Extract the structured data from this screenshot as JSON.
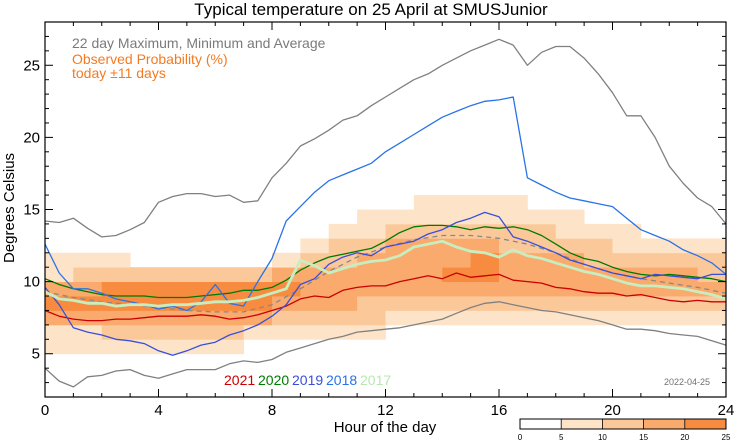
{
  "chart_data": {
    "type": "line",
    "title": "Typical temperature on 25 April at SMUSJunior",
    "xlabel": "Hour of the day",
    "ylabel": "Degrees Celsius",
    "xlim": [
      0,
      24
    ],
    "ylim": [
      2,
      28
    ],
    "x_ticks": [
      0,
      4,
      8,
      12,
      16,
      20,
      24
    ],
    "y_ticks": [
      5,
      10,
      15,
      20,
      25
    ],
    "annotations": {
      "range_label": "22 day Maximum, Minimum and Average",
      "prob_label_1": "Observed Probability (%)",
      "prob_label_2": "today ±11 days",
      "date_stamp": "2022-04-25"
    },
    "colors": {
      "envelope": "#808080",
      "average": "#888888",
      "prob_low": "#fde4c8",
      "prob_midlow": "#fbc89a",
      "prob_mid": "#f9aa6c",
      "prob_midhigh": "#f78c40",
      "prob_high": "#f47a20"
    },
    "colorbar": {
      "ticks": [
        "0",
        "5",
        "10",
        "15",
        "20",
        "25"
      ],
      "colors": [
        "#ffffff",
        "#fde4c8",
        "#fbc89a",
        "#f9aa6c",
        "#f78c40"
      ]
    },
    "probability_bins": {
      "x_step_hours": 1,
      "y_step_degC": 1,
      "y_bins_low": [
        4,
        5,
        6,
        7,
        8,
        9,
        10,
        11,
        12,
        13,
        14,
        15,
        16
      ],
      "levels": [
        [
          0,
          1,
          1,
          3,
          4,
          3,
          1,
          1,
          0,
          0,
          0,
          0,
          0
        ],
        [
          0,
          1,
          1,
          3,
          4,
          3,
          2,
          1,
          0,
          0,
          0,
          0,
          0
        ],
        [
          0,
          1,
          2,
          3,
          4,
          4,
          2,
          1,
          0,
          0,
          0,
          0,
          0
        ],
        [
          0,
          1,
          2,
          3,
          4,
          4,
          2,
          0,
          0,
          0,
          0,
          0,
          0
        ],
        [
          0,
          1,
          2,
          3,
          4,
          4,
          2,
          0,
          0,
          0,
          0,
          0,
          0
        ],
        [
          0,
          1,
          2,
          3,
          4,
          4,
          2,
          0,
          0,
          0,
          0,
          0,
          0
        ],
        [
          0,
          1,
          2,
          3,
          4,
          4,
          2,
          0,
          0,
          0,
          0,
          0,
          0
        ],
        [
          0,
          0,
          1,
          3,
          4,
          4,
          2,
          0,
          0,
          0,
          0,
          0,
          0
        ],
        [
          0,
          0,
          1,
          2,
          3,
          4,
          3,
          1,
          0,
          0,
          0,
          0,
          0
        ],
        [
          0,
          0,
          1,
          2,
          3,
          3,
          3,
          2,
          1,
          0,
          0,
          0,
          0
        ],
        [
          0,
          0,
          1,
          2,
          3,
          3,
          3,
          2,
          2,
          1,
          0,
          0,
          0
        ],
        [
          0,
          0,
          1,
          2,
          2,
          3,
          3,
          3,
          2,
          1,
          1,
          0,
          0
        ],
        [
          0,
          0,
          0,
          1,
          2,
          3,
          3,
          3,
          3,
          2,
          1,
          0,
          0
        ],
        [
          0,
          0,
          0,
          1,
          2,
          3,
          3,
          3,
          3,
          2,
          1,
          1,
          0
        ],
        [
          0,
          0,
          0,
          1,
          2,
          3,
          4,
          3,
          3,
          2,
          1,
          1,
          0
        ],
        [
          0,
          0,
          0,
          1,
          2,
          3,
          4,
          4,
          3,
          2,
          1,
          1,
          0
        ],
        [
          0,
          0,
          0,
          1,
          2,
          3,
          3,
          3,
          2,
          2,
          1,
          1,
          0
        ],
        [
          0,
          0,
          0,
          1,
          2,
          3,
          3,
          3,
          2,
          2,
          1,
          0,
          0
        ],
        [
          0,
          0,
          0,
          1,
          2,
          3,
          3,
          3,
          2,
          1,
          1,
          0,
          0
        ],
        [
          0,
          0,
          0,
          1,
          2,
          3,
          3,
          2,
          2,
          1,
          0,
          0,
          0
        ],
        [
          0,
          0,
          0,
          1,
          2,
          3,
          3,
          2,
          1,
          1,
          0,
          0,
          0
        ],
        [
          0,
          0,
          0,
          1,
          2,
          3,
          3,
          2,
          1,
          0,
          0,
          0,
          0
        ],
        [
          0,
          0,
          0,
          1,
          2,
          3,
          3,
          2,
          1,
          0,
          0,
          0,
          0
        ],
        [
          0,
          0,
          0,
          1,
          2,
          3,
          2,
          2,
          1,
          0,
          0,
          0,
          0
        ]
      ]
    },
    "series": [
      {
        "name": "Maximum",
        "color": "#808080",
        "width": 1.3,
        "x": [
          0,
          0.5,
          1,
          1.5,
          2,
          2.5,
          3,
          3.5,
          4,
          4.5,
          5,
          5.5,
          6,
          6.5,
          7,
          7.5,
          8,
          8.5,
          9,
          9.5,
          10,
          10.5,
          11,
          11.5,
          12,
          12.5,
          13,
          13.5,
          14,
          14.5,
          15,
          15.5,
          16,
          16.5,
          17,
          17.5,
          18,
          18.5,
          19,
          19.5,
          20,
          20.5,
          21,
          21.5,
          22,
          22.5,
          23,
          23.5,
          24
        ],
        "y": [
          14.2,
          14.1,
          14.4,
          13.7,
          13.1,
          13.2,
          13.6,
          14.1,
          15.5,
          15.9,
          16.1,
          16.1,
          15.9,
          16.0,
          15.5,
          15.6,
          17.2,
          18.2,
          19.4,
          19.9,
          20.5,
          21.2,
          21.5,
          22.2,
          22.8,
          23.4,
          24.0,
          24.4,
          25.0,
          25.5,
          26.0,
          26.4,
          26.8,
          26.4,
          25.0,
          25.9,
          26.3,
          26.3,
          25.5,
          24.4,
          23.1,
          21.5,
          21.5,
          20.0,
          18.0,
          16.8,
          15.8,
          15.2,
          14.0
        ]
      },
      {
        "name": "Minimum",
        "color": "#808080",
        "width": 1.3,
        "x": [
          0,
          0.5,
          1,
          1.5,
          2,
          2.5,
          3,
          3.5,
          4,
          4.5,
          5,
          5.5,
          6,
          6.5,
          7,
          7.5,
          8,
          8.5,
          9,
          9.5,
          10,
          10.5,
          11,
          11.5,
          12,
          12.5,
          13,
          13.5,
          14,
          14.5,
          15,
          15.5,
          16,
          16.5,
          17,
          17.5,
          18,
          18.5,
          19,
          19.5,
          20,
          20.5,
          21,
          21.5,
          22,
          22.5,
          23,
          23.5,
          24
        ],
        "y": [
          4.0,
          3.1,
          2.7,
          3.4,
          3.5,
          3.8,
          3.9,
          3.5,
          3.3,
          3.6,
          3.9,
          3.9,
          3.9,
          4.3,
          4.5,
          4.4,
          4.6,
          5.1,
          5.4,
          5.7,
          6.0,
          6.2,
          6.5,
          6.6,
          6.7,
          6.8,
          7.0,
          7.2,
          7.4,
          7.8,
          8.2,
          8.5,
          8.6,
          8.4,
          8.2,
          8.0,
          7.9,
          7.7,
          7.5,
          7.3,
          7.0,
          6.7,
          6.7,
          6.6,
          6.4,
          6.3,
          6.2,
          5.9,
          5.6
        ]
      },
      {
        "name": "Average",
        "color": "#888888",
        "width": 1.3,
        "dash": "5,4",
        "x": [
          0,
          1,
          2,
          3,
          4,
          5,
          6,
          7,
          8,
          9,
          10,
          11,
          12,
          13,
          14,
          15,
          16,
          17,
          18,
          19,
          20,
          21,
          22,
          23,
          24
        ],
        "y": [
          9.3,
          8.9,
          8.6,
          8.4,
          8.2,
          8.0,
          7.9,
          7.9,
          8.4,
          9.5,
          10.7,
          11.7,
          12.4,
          12.9,
          13.2,
          13.2,
          13.0,
          12.6,
          12.0,
          11.2,
          10.6,
          10.2,
          9.9,
          9.6,
          9.2
        ]
      },
      {
        "name": "2021",
        "color": "#cc0000",
        "width": 1.3,
        "x": [
          0,
          0.5,
          1,
          1.5,
          2,
          2.5,
          3,
          3.5,
          4,
          4.5,
          5,
          5.5,
          6,
          6.5,
          7,
          7.5,
          8,
          8.5,
          9,
          9.5,
          10,
          10.5,
          11,
          11.5,
          12,
          12.5,
          13,
          13.5,
          14,
          14.5,
          15,
          15.5,
          16,
          16.5,
          17,
          17.5,
          18,
          18.5,
          19,
          19.5,
          20,
          20.5,
          21,
          21.5,
          22,
          22.5,
          23,
          23.5,
          24
        ],
        "y": [
          8.0,
          7.6,
          7.4,
          7.3,
          7.3,
          7.4,
          7.4,
          7.5,
          7.6,
          7.6,
          7.6,
          7.7,
          7.6,
          7.4,
          7.5,
          7.7,
          8.0,
          8.3,
          8.8,
          9.0,
          8.9,
          9.4,
          9.6,
          9.7,
          9.7,
          10.0,
          10.2,
          10.4,
          10.2,
          10.6,
          10.3,
          10.4,
          10.5,
          10.1,
          10.0,
          9.9,
          9.6,
          9.5,
          9.3,
          9.2,
          9.2,
          9.0,
          9.1,
          8.9,
          8.7,
          8.6,
          8.7,
          8.6,
          8.6
        ]
      },
      {
        "name": "2020",
        "color": "#007a00",
        "width": 1.3,
        "x": [
          0,
          0.5,
          1,
          1.5,
          2,
          2.5,
          3,
          3.5,
          4,
          4.5,
          5,
          5.5,
          6,
          6.5,
          7,
          7.5,
          8,
          8.5,
          9,
          9.5,
          10,
          10.5,
          11,
          11.5,
          12,
          12.5,
          13,
          13.5,
          14,
          14.5,
          15,
          15.5,
          16,
          16.5,
          17,
          17.5,
          18,
          18.5,
          19,
          19.5,
          20,
          20.5,
          21,
          21.5,
          22,
          22.5,
          23,
          23.5,
          24
        ],
        "y": [
          10.2,
          9.8,
          9.5,
          9.3,
          9.1,
          9.0,
          9.0,
          9.0,
          8.9,
          8.9,
          8.9,
          9.0,
          9.1,
          9.2,
          9.4,
          9.4,
          9.6,
          10.1,
          10.8,
          11.3,
          11.7,
          11.9,
          12.1,
          12.3,
          12.8,
          13.4,
          13.8,
          13.9,
          13.9,
          13.8,
          13.6,
          13.8,
          13.7,
          13.8,
          13.6,
          13.2,
          12.6,
          12.0,
          11.6,
          11.4,
          11.0,
          10.7,
          10.5,
          10.4,
          10.5,
          10.4,
          10.3,
          10.2,
          10.0
        ]
      },
      {
        "name": "2019",
        "color": "#3a4fd8",
        "width": 1.3,
        "x": [
          0,
          0.5,
          1,
          1.5,
          2,
          2.5,
          3,
          3.5,
          4,
          4.5,
          5,
          5.5,
          6,
          6.5,
          7,
          7.5,
          8,
          8.5,
          9,
          9.5,
          10,
          10.5,
          11,
          11.5,
          12,
          12.5,
          13,
          13.5,
          14,
          14.5,
          15,
          15.5,
          16,
          16.5,
          17,
          17.5,
          18,
          18.5,
          19,
          19.5,
          20,
          20.5,
          21,
          21.5,
          22,
          22.5,
          23,
          23.5,
          24
        ],
        "y": [
          9.6,
          8.4,
          6.8,
          6.5,
          6.3,
          6.0,
          5.9,
          5.7,
          5.2,
          4.9,
          5.2,
          5.6,
          5.8,
          6.3,
          6.6,
          7.0,
          7.6,
          8.4,
          9.8,
          10.2,
          11.2,
          11.7,
          12.0,
          11.8,
          12.4,
          12.6,
          12.8,
          13.3,
          13.6,
          14.1,
          14.4,
          14.8,
          14.5,
          13.1,
          12.8,
          12.4,
          12.0,
          11.5,
          11.2,
          10.9,
          10.6,
          10.4,
          10.2,
          10.5,
          10.4,
          10.3,
          10.2,
          10.5,
          10.5
        ]
      },
      {
        "name": "2018",
        "color": "#2a73e6",
        "width": 1.3,
        "x": [
          0,
          0.5,
          1,
          1.5,
          2,
          2.5,
          3,
          3.5,
          4,
          4.5,
          5,
          5.5,
          6,
          6.5,
          7,
          7.5,
          8,
          8.5,
          9,
          9.5,
          10,
          10.5,
          11,
          11.5,
          12,
          12.5,
          13,
          13.5,
          14,
          14.5,
          15,
          15.5,
          16,
          16.5,
          17,
          17.5,
          18,
          18.5,
          19,
          19.5,
          20,
          20.5,
          21,
          21.5,
          22,
          22.5,
          23,
          23.5,
          24
        ],
        "y": [
          12.6,
          10.6,
          9.5,
          9.5,
          9.2,
          8.8,
          8.6,
          8.4,
          8.1,
          8.3,
          8.0,
          8.6,
          9.8,
          8.5,
          8.3,
          10.0,
          11.6,
          14.2,
          15.2,
          16.2,
          17.0,
          17.4,
          17.8,
          18.2,
          19.0,
          19.6,
          20.2,
          20.8,
          21.4,
          21.8,
          22.2,
          22.5,
          22.6,
          22.8,
          17.2,
          16.7,
          16.2,
          15.8,
          15.6,
          15.4,
          15.2,
          14.4,
          13.6,
          13.2,
          12.8,
          12.2,
          11.8,
          11.3,
          10.5
        ]
      },
      {
        "name": "2017",
        "color": "#c8eec0",
        "width": 2.8,
        "x": [
          0,
          0.5,
          1,
          1.5,
          2,
          2.5,
          3,
          3.5,
          4,
          4.5,
          5,
          5.5,
          6,
          6.5,
          7,
          7.5,
          8,
          8.5,
          9,
          9.5,
          10,
          10.5,
          11,
          11.5,
          12,
          12.5,
          13,
          13.5,
          14,
          14.5,
          15,
          15.5,
          16,
          16.5,
          17,
          17.5,
          18,
          18.5,
          19,
          19.5,
          20,
          20.5,
          21,
          21.5,
          22,
          22.5,
          23,
          23.5,
          24
        ],
        "y": [
          9.3,
          8.8,
          8.7,
          8.5,
          8.5,
          8.3,
          8.4,
          8.4,
          8.3,
          8.4,
          8.4,
          8.5,
          8.6,
          8.6,
          8.7,
          8.9,
          9.2,
          9.5,
          11.5,
          11.1,
          10.6,
          10.9,
          11.2,
          11.4,
          11.5,
          11.8,
          12.4,
          12.6,
          12.8,
          12.4,
          12.1,
          12.0,
          11.7,
          12.2,
          11.8,
          11.6,
          11.3,
          11.0,
          10.7,
          10.5,
          10.2,
          9.9,
          9.7,
          9.7,
          9.6,
          9.5,
          9.3,
          9.1,
          8.8
        ]
      }
    ],
    "legend": [
      {
        "label": "2021",
        "color": "#cc0000"
      },
      {
        "label": "2020",
        "color": "#007a00"
      },
      {
        "label": "2019",
        "color": "#3a4fd8"
      },
      {
        "label": "2018",
        "color": "#2a73e6"
      },
      {
        "label": "2017",
        "color": "#b8e8b0"
      }
    ]
  }
}
